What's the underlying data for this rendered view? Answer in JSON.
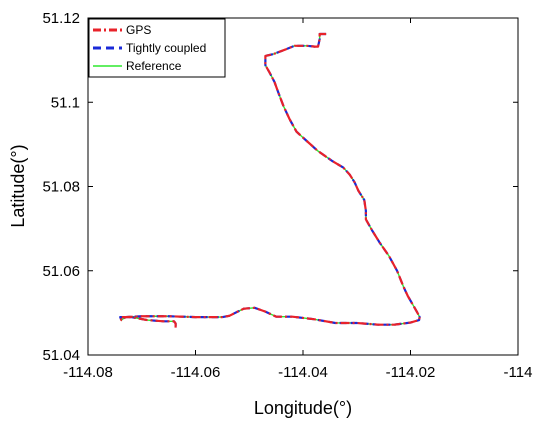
{
  "chart_data": {
    "type": "line",
    "title": "",
    "xlabel": "Longitude(°)",
    "ylabel": "Latitude(°)",
    "xlim": [
      -114.08,
      -114.0
    ],
    "ylim": [
      51.04,
      51.12
    ],
    "xticks": [
      -114.08,
      -114.06,
      -114.04,
      -114.02,
      -114.0
    ],
    "xtick_labels": [
      "-114.08",
      "-114.06",
      "-114.04",
      "-114.02",
      "-114"
    ],
    "yticks": [
      51.04,
      51.06,
      51.08,
      51.1,
      51.12
    ],
    "ytick_labels": [
      "51.04",
      "51.06",
      "51.08",
      "51.1",
      "51.12"
    ],
    "grid": false,
    "legend_position": "top-left",
    "series": [
      {
        "name": "GPS",
        "color": "#e8222a",
        "style": "dash-dot",
        "x": [
          -114.0357,
          -114.0369,
          -114.0369,
          -114.0372,
          -114.0378,
          -114.0393,
          -114.0416,
          -114.0433,
          -114.0456,
          -114.047,
          -114.047,
          -114.0462,
          -114.0453,
          -114.0445,
          -114.0436,
          -114.0425,
          -114.0412,
          -114.0393,
          -114.0373,
          -114.0345,
          -114.0325,
          -114.0313,
          -114.0304,
          -114.0297,
          -114.0286,
          -114.0283,
          -114.0283,
          -114.0272,
          -114.0258,
          -114.024,
          -114.0225,
          -114.0213,
          -114.0205,
          -114.0195,
          -114.0187,
          -114.0183,
          -114.0184,
          -114.02,
          -114.023,
          -114.026,
          -114.03,
          -114.034,
          -114.038,
          -114.042,
          -114.045,
          -114.047,
          -114.049,
          -114.051,
          -114.0523,
          -114.0537,
          -114.055,
          -114.057,
          -114.06,
          -114.065,
          -114.07,
          -114.073,
          -114.0738,
          -114.074,
          -114.072,
          -114.069,
          -114.066,
          -114.064,
          -114.0637,
          -114.0637
        ],
        "y": [
          51.1162,
          51.1162,
          51.115,
          51.1132,
          51.1132,
          51.1134,
          51.1134,
          51.1125,
          51.1114,
          51.111,
          51.1088,
          51.107,
          51.1048,
          51.102,
          51.099,
          51.096,
          51.093,
          51.0908,
          51.0885,
          51.086,
          51.0845,
          51.0828,
          51.081,
          51.079,
          51.0768,
          51.0742,
          51.0722,
          51.0697,
          51.0668,
          51.0635,
          51.06,
          51.0562,
          51.054,
          51.0518,
          51.05,
          51.049,
          51.0483,
          51.0477,
          51.0472,
          51.0472,
          51.0476,
          51.0476,
          51.0485,
          51.0491,
          51.0491,
          51.0503,
          51.0512,
          51.051,
          51.0502,
          51.0493,
          51.049,
          51.049,
          51.049,
          51.0492,
          51.0492,
          51.049,
          51.0483,
          51.049,
          51.049,
          51.0483,
          51.048,
          51.048,
          51.0475,
          51.0465
        ]
      },
      {
        "name": "Tightly coupled",
        "color": "#1a2ad8",
        "style": "dashed",
        "x": [
          -114.0357,
          -114.0369,
          -114.0369,
          -114.0372,
          -114.0378,
          -114.0393,
          -114.0416,
          -114.0433,
          -114.0456,
          -114.047,
          -114.047,
          -114.0462,
          -114.0453,
          -114.0445,
          -114.0436,
          -114.0425,
          -114.0412,
          -114.0393,
          -114.0373,
          -114.0345,
          -114.0325,
          -114.0313,
          -114.0304,
          -114.0297,
          -114.0286,
          -114.0283,
          -114.0283,
          -114.0272,
          -114.0258,
          -114.024,
          -114.0225,
          -114.0213,
          -114.0205,
          -114.0195,
          -114.0187,
          -114.0183,
          -114.0184,
          -114.02,
          -114.023,
          -114.026,
          -114.03,
          -114.034,
          -114.038,
          -114.042,
          -114.045,
          -114.047,
          -114.049,
          -114.051,
          -114.0523,
          -114.0537,
          -114.055,
          -114.057,
          -114.06,
          -114.065,
          -114.07,
          -114.073,
          -114.0738,
          -114.074,
          -114.072,
          -114.069,
          -114.066,
          -114.064,
          -114.0637,
          -114.0637
        ],
        "y": [
          51.1162,
          51.1162,
          51.115,
          51.1132,
          51.1132,
          51.1134,
          51.1134,
          51.1125,
          51.1114,
          51.111,
          51.1088,
          51.107,
          51.1048,
          51.102,
          51.099,
          51.096,
          51.093,
          51.0908,
          51.0885,
          51.086,
          51.0845,
          51.0828,
          51.081,
          51.079,
          51.0768,
          51.0742,
          51.0722,
          51.0697,
          51.0668,
          51.0635,
          51.06,
          51.0562,
          51.054,
          51.0518,
          51.05,
          51.049,
          51.0483,
          51.0477,
          51.0472,
          51.0472,
          51.0476,
          51.0476,
          51.0485,
          51.0491,
          51.0491,
          51.0503,
          51.0512,
          51.051,
          51.0502,
          51.0493,
          51.049,
          51.049,
          51.049,
          51.0492,
          51.0492,
          51.049,
          51.0483,
          51.049,
          51.049,
          51.0483,
          51.048,
          51.048,
          51.0475,
          51.0468
        ]
      },
      {
        "name": "Reference",
        "color": "#2ee82e",
        "style": "solid",
        "x": [
          -114.0357,
          -114.0369,
          -114.0369,
          -114.0372,
          -114.0378,
          -114.0393,
          -114.0416,
          -114.0433,
          -114.0456,
          -114.047,
          -114.047,
          -114.0462,
          -114.0453,
          -114.0445,
          -114.0436,
          -114.0425,
          -114.0412,
          -114.0393,
          -114.0373,
          -114.0345,
          -114.0325,
          -114.0313,
          -114.0304,
          -114.0297,
          -114.0286,
          -114.0283,
          -114.0283,
          -114.0272,
          -114.0258,
          -114.024,
          -114.0225,
          -114.0213,
          -114.0205,
          -114.0195,
          -114.0187,
          -114.0183,
          -114.0184,
          -114.02,
          -114.023,
          -114.026,
          -114.03,
          -114.034,
          -114.038,
          -114.042,
          -114.045,
          -114.047,
          -114.049,
          -114.051,
          -114.0523,
          -114.0537,
          -114.055,
          -114.057,
          -114.06,
          -114.065,
          -114.07,
          -114.073,
          -114.0738,
          -114.074,
          -114.072,
          -114.069,
          -114.066,
          -114.064,
          -114.0637,
          -114.0637
        ],
        "y": [
          51.1162,
          51.1162,
          51.115,
          51.1132,
          51.1132,
          51.1134,
          51.1134,
          51.1125,
          51.1114,
          51.111,
          51.1088,
          51.107,
          51.1048,
          51.102,
          51.099,
          51.096,
          51.093,
          51.0908,
          51.0885,
          51.086,
          51.0845,
          51.0828,
          51.081,
          51.079,
          51.0768,
          51.0742,
          51.0722,
          51.0697,
          51.0668,
          51.0635,
          51.06,
          51.0562,
          51.054,
          51.0518,
          51.05,
          51.049,
          51.0483,
          51.0477,
          51.0472,
          51.0472,
          51.0476,
          51.0476,
          51.0485,
          51.0491,
          51.0491,
          51.0503,
          51.0512,
          51.051,
          51.0502,
          51.0493,
          51.049,
          51.049,
          51.049,
          51.0492,
          51.0492,
          51.049,
          51.0483,
          51.049,
          51.049,
          51.0483,
          51.048,
          51.048,
          51.0475,
          51.0468
        ]
      }
    ]
  }
}
